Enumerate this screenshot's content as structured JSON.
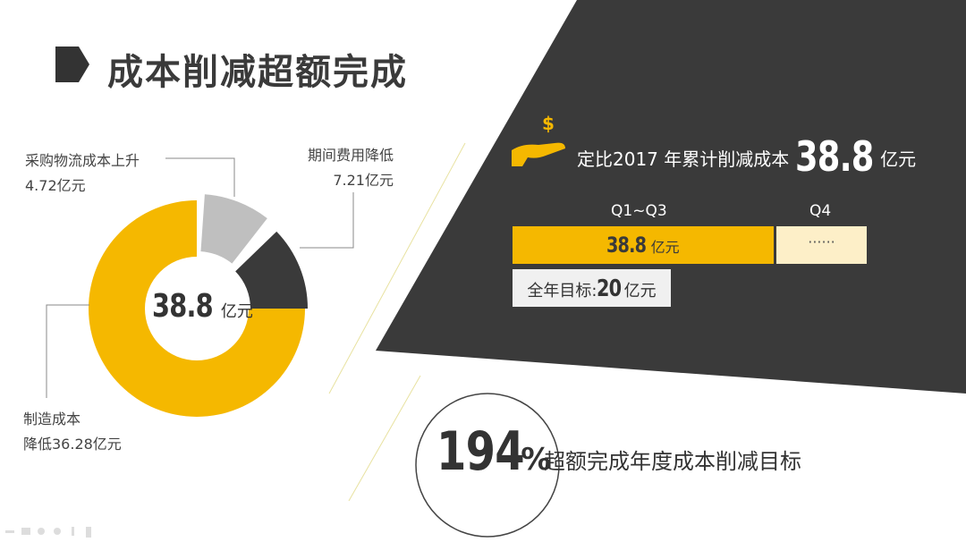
{
  "title": "成本削减超额完成",
  "chart_data": {
    "type": "pie",
    "style": "donut",
    "center_label": {
      "value": "38.8",
      "unit": "亿元"
    },
    "slices": [
      {
        "label": "制造成本",
        "label2": "降低36.28亿元",
        "value": 36.28,
        "color": "#f5b800"
      },
      {
        "label": "采购物流成本上升",
        "label2": "4.72亿元",
        "value": 4.72,
        "color": "#bfbfbf"
      },
      {
        "label": "期间费用降低",
        "label2": "7.21亿元",
        "value": 7.21,
        "color": "#3a3a3a"
      }
    ]
  },
  "headline": {
    "text": "定比2017 年累计削减成本",
    "value": "38.8",
    "unit": "亿元",
    "icon": "money-hand-icon"
  },
  "quarters": {
    "q13_label": "Q1~Q3",
    "q13_value": "38.8",
    "q13_unit": "亿元",
    "q4_label": "Q4",
    "q4_value": "······"
  },
  "target": {
    "label": "全年目标:",
    "value": "20",
    "unit": "亿元"
  },
  "completion": {
    "value": "194",
    "unit": "%",
    "text": "超额完成年度成本削减目标"
  },
  "colors": {
    "accent": "#f5b800",
    "dark": "#3a3a3a",
    "light_accent": "#fdefc8"
  },
  "toolbar_icons": [
    "pen-icon",
    "slide-icon",
    "lasso-icon",
    "eraser-icon",
    "pointer-icon",
    "battery-icon"
  ]
}
